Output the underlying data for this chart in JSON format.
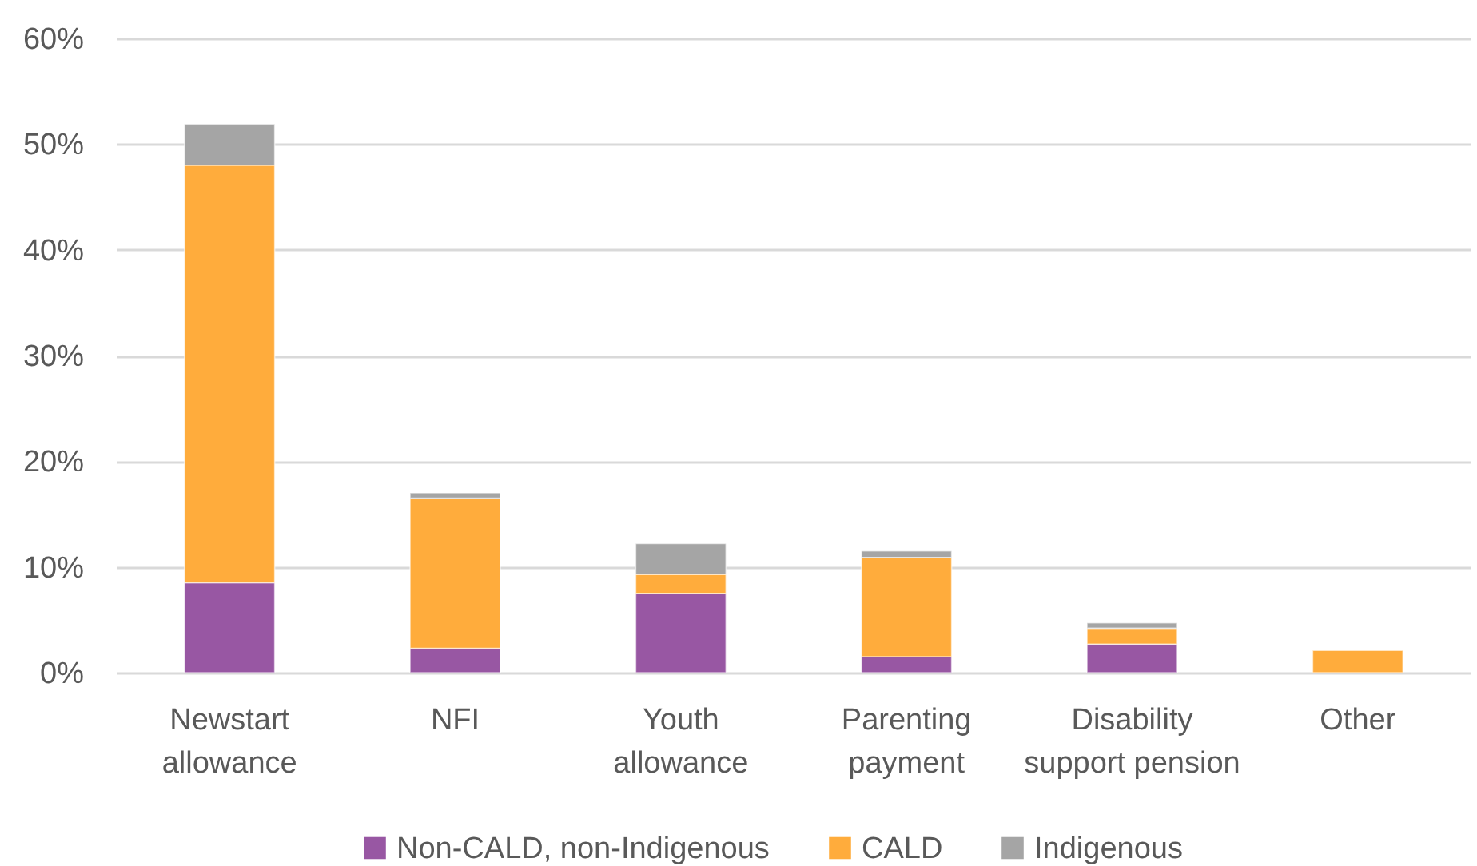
{
  "chart_data": {
    "type": "bar",
    "stacked": true,
    "categories": [
      "Newstart\nallowance",
      "NFI",
      "Youth\nallowance",
      "Parenting\npayment",
      "Disability\nsupport pension",
      "Other"
    ],
    "series": [
      {
        "name": "Non-CALD, non-Indigenous",
        "color": "#9857a3",
        "values": [
          8.5,
          2.3,
          7.5,
          1.5,
          2.7,
          null
        ]
      },
      {
        "name": "CALD",
        "color": "#ffac3c",
        "values": [
          39.5,
          14.2,
          1.8,
          9.4,
          1.5,
          2.1
        ]
      },
      {
        "name": "Indigenous",
        "color": "#a5a5a5",
        "values": [
          3.9,
          0.5,
          2.9,
          0.6,
          0.5,
          null
        ]
      }
    ],
    "ylim": [
      0,
      60
    ],
    "yticks": [
      {
        "value": 0,
        "label": "0%"
      },
      {
        "value": 10,
        "label": "10%"
      },
      {
        "value": 20,
        "label": "20%"
      },
      {
        "value": 30,
        "label": "30%"
      },
      {
        "value": 40,
        "label": "40%"
      },
      {
        "value": 50,
        "label": "50%"
      },
      {
        "value": 60,
        "label": "60%"
      }
    ],
    "grid": "y",
    "legend": "bottom"
  }
}
